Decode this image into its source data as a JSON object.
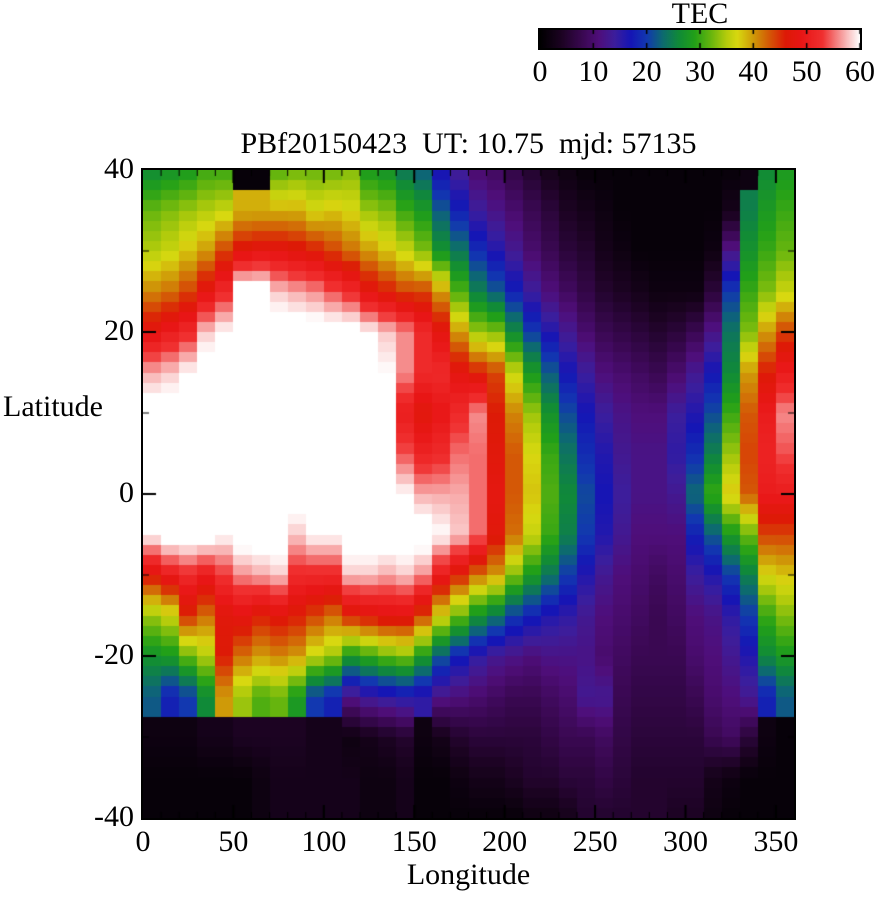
{
  "title": "PBf20150423  UT: 10.75  mjd: 57135",
  "colorbar": {
    "title": "TEC",
    "min": 0,
    "max": 60,
    "tick_values": [
      0,
      10,
      20,
      30,
      40,
      50,
      60
    ],
    "tick_labels": [
      "0",
      "10",
      "20",
      "30",
      "40",
      "50",
      "60"
    ]
  },
  "axes": {
    "x_label": "Longitude",
    "y_label": "Latitude",
    "x_range": [
      0,
      360
    ],
    "y_range": [
      -40,
      40
    ],
    "x_tick_values": [
      0,
      50,
      100,
      150,
      200,
      250,
      300,
      350
    ],
    "x_tick_labels": [
      "0",
      "50",
      "100",
      "150",
      "200",
      "250",
      "300",
      "350"
    ],
    "y_tick_values": [
      40,
      20,
      0,
      -20,
      -40
    ],
    "y_tick_labels": [
      "40",
      "20",
      "0",
      "-20",
      "-40"
    ]
  },
  "chart_data": {
    "type": "heatmap",
    "title": "PBf20150423  UT: 10.75  mjd: 57135",
    "xlabel": "Longitude",
    "ylabel": "Latitude",
    "colorbar_label": "TEC",
    "x_range": [
      0,
      360
    ],
    "y_range": [
      -40,
      40
    ],
    "value_range": [
      0,
      60
    ],
    "grid": "off",
    "legend_position": "top-right-colorbar",
    "lon_cell_deg": 10,
    "lon_centers": [
      5,
      15,
      25,
      35,
      45,
      55,
      65,
      75,
      85,
      95,
      105,
      115,
      125,
      135,
      145,
      155,
      165,
      175,
      185,
      195,
      205,
      215,
      225,
      235,
      245,
      255,
      265,
      275,
      285,
      295,
      305,
      315,
      325,
      335,
      345,
      355
    ],
    "lat_points": [
      40,
      35,
      30,
      25,
      20,
      15,
      10,
      5,
      0,
      -5,
      -10,
      -15,
      -20,
      -25,
      -30,
      -35,
      -40
    ],
    "tec_columns": [
      [
        26,
        32,
        35,
        41,
        48,
        57,
        62,
        62,
        62,
        60,
        47,
        34,
        27,
        22,
        2,
        1,
        1
      ],
      [
        27,
        33,
        36,
        42,
        50,
        58,
        62,
        62,
        62,
        62,
        50,
        36,
        28,
        18,
        2,
        1,
        1
      ],
      [
        28,
        34,
        38,
        44,
        52,
        60,
        62,
        62,
        62,
        62,
        52,
        45,
        32,
        20,
        2,
        1,
        1
      ],
      [
        30,
        35,
        40,
        48,
        58,
        62,
        62,
        62,
        62,
        62,
        50,
        42,
        35,
        26,
        3,
        1,
        1
      ],
      [
        30,
        36,
        44,
        52,
        60,
        62,
        62,
        62,
        62,
        60,
        53,
        47,
        46,
        40,
        3,
        1,
        1
      ],
      [
        1,
        39,
        47,
        62,
        62,
        62,
        62,
        62,
        62,
        62,
        56,
        48,
        42,
        34,
        4,
        1,
        1
      ],
      [
        1,
        39,
        48,
        62,
        62,
        62,
        62,
        62,
        62,
        62,
        57,
        46,
        40,
        31,
        4,
        2,
        2
      ],
      [
        31,
        39,
        48,
        58,
        62,
        62,
        62,
        62,
        62,
        62,
        58,
        47,
        41,
        32,
        4,
        3,
        3
      ],
      [
        32,
        39,
        47,
        57,
        62,
        62,
        62,
        62,
        62,
        58,
        52,
        46,
        40,
        28,
        4,
        3,
        3
      ],
      [
        32,
        37,
        46,
        56,
        62,
        62,
        62,
        62,
        62,
        60,
        52,
        44,
        36,
        20,
        3,
        3,
        3
      ],
      [
        32,
        38,
        44,
        54,
        62,
        62,
        62,
        62,
        62,
        60,
        52,
        42,
        34,
        18,
        3,
        3,
        3
      ],
      [
        33,
        37,
        42,
        52,
        62,
        62,
        62,
        62,
        62,
        62,
        58,
        46,
        28,
        12,
        2,
        3,
        3
      ],
      [
        28,
        34,
        40,
        48,
        60,
        62,
        62,
        62,
        62,
        62,
        58,
        47,
        30,
        14,
        3,
        2,
        2
      ],
      [
        27,
        33,
        38,
        46,
        58,
        60,
        60,
        60,
        62,
        62,
        57,
        48,
        32,
        15,
        4,
        2,
        2
      ],
      [
        24,
        30,
        36,
        44,
        56,
        56,
        50,
        54,
        60,
        62,
        58,
        48,
        33,
        16,
        5,
        3,
        3
      ],
      [
        22,
        28,
        33,
        44,
        52,
        52,
        47,
        51,
        57,
        62,
        56,
        44,
        28,
        15,
        2,
        1,
        1
      ],
      [
        16,
        22,
        27,
        40,
        48,
        52,
        49,
        52,
        57,
        60,
        50,
        37,
        22,
        12,
        3,
        1,
        1
      ],
      [
        13,
        18,
        24,
        31,
        40,
        48,
        52,
        55,
        57,
        58,
        46,
        32,
        18,
        11,
        5,
        2,
        1
      ],
      [
        10,
        14,
        19,
        25,
        34,
        46,
        56,
        55,
        55,
        55,
        42,
        27,
        15,
        10,
        6,
        3,
        1
      ],
      [
        9,
        12,
        16,
        22,
        33,
        44,
        46,
        47,
        48,
        47,
        40,
        24,
        13,
        9,
        6,
        3,
        1
      ],
      [
        7,
        10,
        13,
        18,
        26,
        36,
        41,
        43,
        43,
        42,
        33,
        20,
        12,
        8,
        6,
        4,
        1
      ],
      [
        5,
        8,
        10,
        14,
        20,
        28,
        34,
        37,
        38,
        36,
        28,
        18,
        11,
        8,
        6,
        5,
        2
      ],
      [
        3,
        6,
        8,
        11,
        16,
        22,
        27,
        30,
        31,
        30,
        24,
        16,
        12,
        9,
        7,
        5,
        2
      ],
      [
        2,
        4,
        6,
        9,
        13,
        17,
        21,
        24,
        26,
        25,
        20,
        15,
        12,
        10,
        8,
        6,
        3
      ],
      [
        1,
        3,
        5,
        7,
        10,
        14,
        17,
        19,
        21,
        20,
        16,
        13,
        12,
        13,
        8,
        6,
        5
      ],
      [
        1,
        2,
        3,
        5,
        8,
        11,
        14,
        16,
        17,
        16,
        13,
        11,
        10,
        13,
        9,
        7,
        5
      ],
      [
        1,
        1,
        2,
        4,
        7,
        10,
        12,
        13,
        14,
        13,
        11,
        10,
        9,
        8,
        7,
        6,
        5
      ],
      [
        1,
        1,
        1,
        3,
        6,
        9,
        11,
        12,
        12,
        11,
        10,
        9,
        8,
        7,
        6,
        5,
        5
      ],
      [
        1,
        1,
        1,
        2,
        5,
        8,
        11,
        12,
        12,
        11,
        9,
        8,
        8,
        7,
        6,
        5,
        5
      ],
      [
        1,
        1,
        1,
        2,
        6,
        10,
        14,
        15,
        13,
        11,
        10,
        9,
        8,
        7,
        6,
        5,
        4
      ],
      [
        1,
        1,
        1,
        2,
        8,
        13,
        16,
        19,
        23,
        18,
        14,
        11,
        10,
        8,
        6,
        5,
        4
      ],
      [
        1,
        1,
        2,
        6,
        12,
        17,
        21,
        25,
        30,
        22,
        16,
        12,
        11,
        10,
        8,
        3,
        2
      ],
      [
        1,
        3,
        12,
        20,
        24,
        26,
        30,
        34,
        38,
        28,
        20,
        15,
        13,
        11,
        9,
        2,
        1
      ],
      [
        2,
        25,
        27,
        30,
        33,
        40,
        43,
        44,
        43,
        32,
        25,
        20,
        16,
        13,
        6,
        1,
        1
      ],
      [
        26,
        28,
        30,
        33,
        40,
        46,
        50,
        51,
        50,
        44,
        37,
        30,
        26,
        18,
        2,
        1,
        1
      ],
      [
        28,
        30,
        32,
        36,
        44,
        50,
        56,
        54,
        50,
        44,
        38,
        33,
        28,
        22,
        1,
        1,
        1
      ]
    ],
    "palette_stops": [
      [
        0,
        "#000000"
      ],
      [
        4,
        "#1c0322"
      ],
      [
        8,
        "#3a0852"
      ],
      [
        11,
        "#4f0e7a"
      ],
      [
        14,
        "#3c1e9c"
      ],
      [
        17,
        "#1515b5"
      ],
      [
        20,
        "#1238b0"
      ],
      [
        23,
        "#0d6a70"
      ],
      [
        26,
        "#108a38"
      ],
      [
        29,
        "#22a018"
      ],
      [
        32,
        "#66b50e"
      ],
      [
        35,
        "#b5cc0c"
      ],
      [
        37,
        "#d8d810"
      ],
      [
        40,
        "#cf9a08"
      ],
      [
        43,
        "#d45806"
      ],
      [
        46,
        "#dd1a06"
      ],
      [
        49,
        "#e81616"
      ],
      [
        53,
        "#f03030"
      ],
      [
        56,
        "#f58c8c"
      ],
      [
        58,
        "#fac8c8"
      ],
      [
        60,
        "#ffffff"
      ]
    ]
  }
}
